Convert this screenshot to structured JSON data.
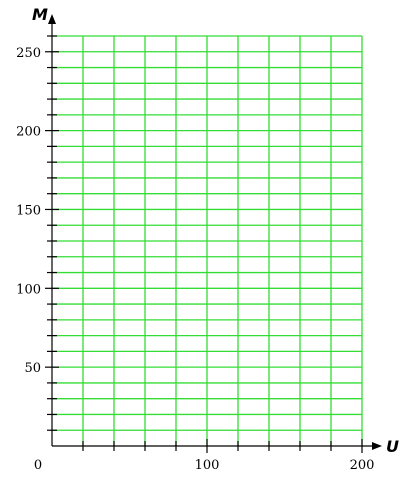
{
  "chart_data": {
    "type": "line",
    "xlabel": "U",
    "ylabel": "M",
    "xlim": [
      0,
      200
    ],
    "ylim": [
      0,
      260
    ],
    "x_major_ticks": [
      0,
      100,
      200
    ],
    "y_major_ticks": [
      50,
      100,
      150,
      200,
      250
    ],
    "x_tick_labels": [
      "0",
      "100",
      "200"
    ],
    "y_tick_labels": [
      "50",
      "100",
      "150",
      "200",
      "250"
    ],
    "x_grid_step": 20,
    "y_grid_step": 10,
    "grid": true,
    "series": []
  },
  "colors": {
    "grid": "#33dd33",
    "axis": "#000000",
    "background": "#ffffff"
  }
}
